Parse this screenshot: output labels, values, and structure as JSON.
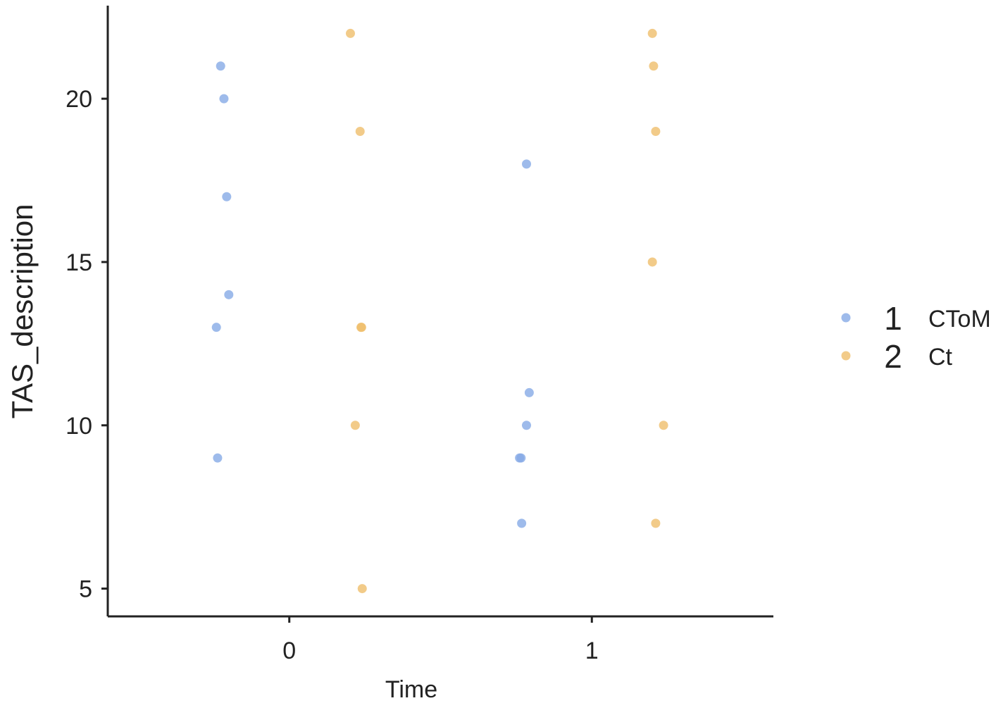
{
  "chart_data": {
    "type": "scatter",
    "xlabel": "Time",
    "ylabel": "TAS_description",
    "xlim": [
      -0.6,
      1.6
    ],
    "xticks": [
      0,
      1
    ],
    "ylim": [
      4.15,
      22.85
    ],
    "yticks": [
      5,
      10,
      15,
      20
    ],
    "series": [
      {
        "name": "1",
        "label": "CToM",
        "color": "#86aae6",
        "x": [
          -0.227,
          -0.216,
          -0.207,
          -0.2,
          -0.241,
          -0.237,
          0.784,
          0.793,
          0.784,
          0.766,
          0.761,
          0.768
        ],
        "values": [
          21,
          20,
          17,
          14,
          13,
          9,
          18,
          11,
          10,
          9,
          9,
          7
        ]
      },
      {
        "name": "2",
        "label": "Ct",
        "color": "#efbe6c",
        "x": [
          0.202,
          0.234,
          0.239,
          0.237,
          0.218,
          0.241,
          1.2,
          1.204,
          1.211,
          1.2,
          1.237,
          1.211
        ],
        "values": [
          22,
          19,
          13,
          13,
          10,
          5,
          22,
          21,
          19,
          15,
          10,
          7
        ]
      }
    ]
  }
}
